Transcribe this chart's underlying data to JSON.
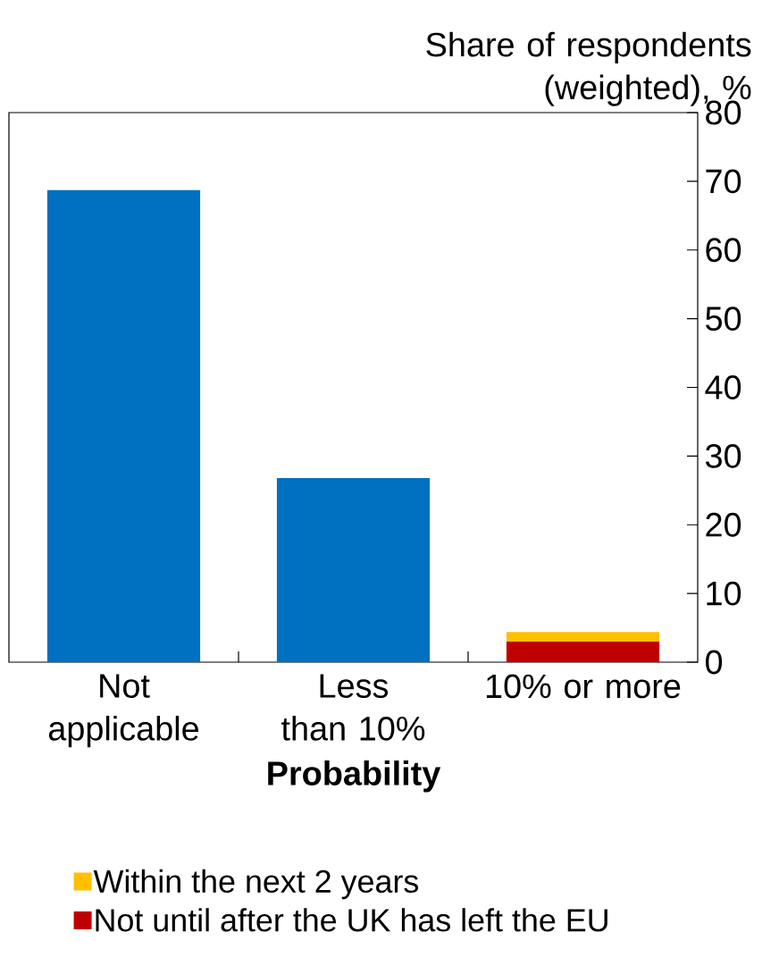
{
  "chart_data": {
    "type": "bar",
    "stacked": true,
    "xlabel": "Probability",
    "ylabel": "Share of respondents (weighted), %",
    "categories": [
      "Not applicable",
      "Less than 10%",
      "10% or more"
    ],
    "series": [
      {
        "color": "#0070c0",
        "values": [
          68.7,
          26.8,
          null
        ]
      },
      {
        "name": "Not until after the UK has left the EU",
        "color": "#c00000",
        "values": [
          null,
          null,
          3.0
        ]
      },
      {
        "name": "Within the next 2 years",
        "color": "#ffc000",
        "values": [
          null,
          null,
          1.4
        ]
      }
    ],
    "ylim": [
      0,
      80
    ],
    "yticks": [
      0,
      10,
      20,
      30,
      40,
      50,
      60,
      70,
      80
    ],
    "legend": "bottom"
  }
}
